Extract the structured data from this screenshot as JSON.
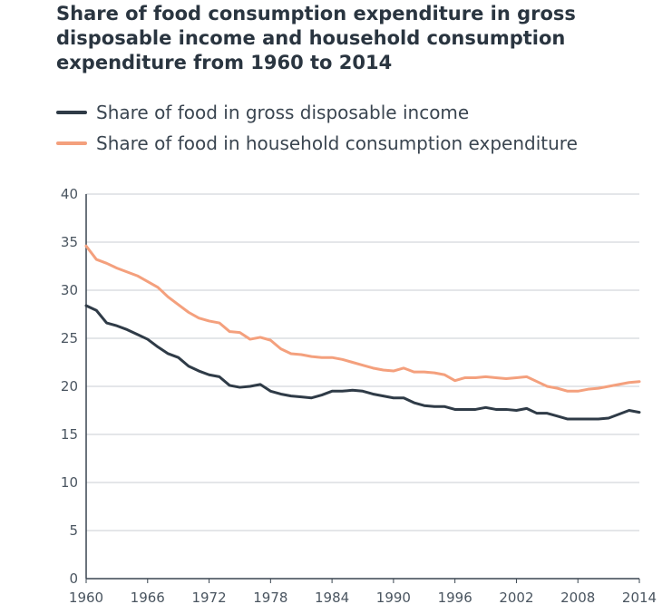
{
  "chart_data": {
    "type": "line",
    "title": "Share of food consumption expenditure in gross disposable income and household consumption expenditure from 1960 to 2014",
    "xlabel": "",
    "ylabel": "",
    "xlim": [
      1960,
      2014
    ],
    "ylim": [
      0,
      40
    ],
    "yticks": [
      "0",
      "5",
      "10",
      "15",
      "20",
      "25",
      "30",
      "35",
      "40"
    ],
    "ytick_values": [
      0,
      5,
      10,
      15,
      20,
      25,
      30,
      35,
      40
    ],
    "xticks": [
      "1960",
      "1966",
      "1972",
      "1978",
      "1984",
      "1990",
      "1996",
      "2002",
      "2008",
      "2014"
    ],
    "xtick_values": [
      1960,
      1966,
      1972,
      1978,
      1984,
      1990,
      1996,
      2002,
      2008,
      2014
    ],
    "grid": "horizontal",
    "legend_position": "top-left",
    "x": [
      1960,
      1961,
      1962,
      1963,
      1964,
      1965,
      1966,
      1967,
      1968,
      1969,
      1970,
      1971,
      1972,
      1973,
      1974,
      1975,
      1976,
      1977,
      1978,
      1979,
      1980,
      1981,
      1982,
      1983,
      1984,
      1985,
      1986,
      1987,
      1988,
      1989,
      1990,
      1991,
      1992,
      1993,
      1994,
      1995,
      1996,
      1997,
      1998,
      1999,
      2000,
      2001,
      2002,
      2003,
      2004,
      2005,
      2006,
      2007,
      2008,
      2009,
      2010,
      2011,
      2012,
      2013,
      2014
    ],
    "series": [
      {
        "name": "Share of food in gross disposable income",
        "color": "#2f3b47",
        "values": [
          28.4,
          27.9,
          26.6,
          26.3,
          25.9,
          25.4,
          24.9,
          24.1,
          23.4,
          23.0,
          22.1,
          21.6,
          21.2,
          21.0,
          20.1,
          19.9,
          20.0,
          20.2,
          19.5,
          19.2,
          19.0,
          18.9,
          18.8,
          19.1,
          19.5,
          19.5,
          19.6,
          19.5,
          19.2,
          19.0,
          18.8,
          18.8,
          18.3,
          18.0,
          17.9,
          17.9,
          17.6,
          17.6,
          17.6,
          17.8,
          17.6,
          17.6,
          17.5,
          17.7,
          17.2,
          17.2,
          16.9,
          16.6,
          16.6,
          16.6,
          16.6,
          16.7,
          17.1,
          17.5,
          17.3
        ]
      },
      {
        "name": "Share of food in household consumption expenditure",
        "color": "#f4a07d",
        "values": [
          34.6,
          33.2,
          32.8,
          32.3,
          31.9,
          31.5,
          30.9,
          30.3,
          29.3,
          28.5,
          27.7,
          27.1,
          26.8,
          26.6,
          25.7,
          25.6,
          24.9,
          25.1,
          24.8,
          23.9,
          23.4,
          23.3,
          23.1,
          23.0,
          23.0,
          22.8,
          22.5,
          22.2,
          21.9,
          21.7,
          21.6,
          21.9,
          21.5,
          21.5,
          21.4,
          21.2,
          20.6,
          20.9,
          20.9,
          21.0,
          20.9,
          20.8,
          20.9,
          21.0,
          20.5,
          20.0,
          19.8,
          19.5,
          19.5,
          19.7,
          19.8,
          20.0,
          20.2,
          20.4,
          20.5
        ]
      }
    ]
  }
}
